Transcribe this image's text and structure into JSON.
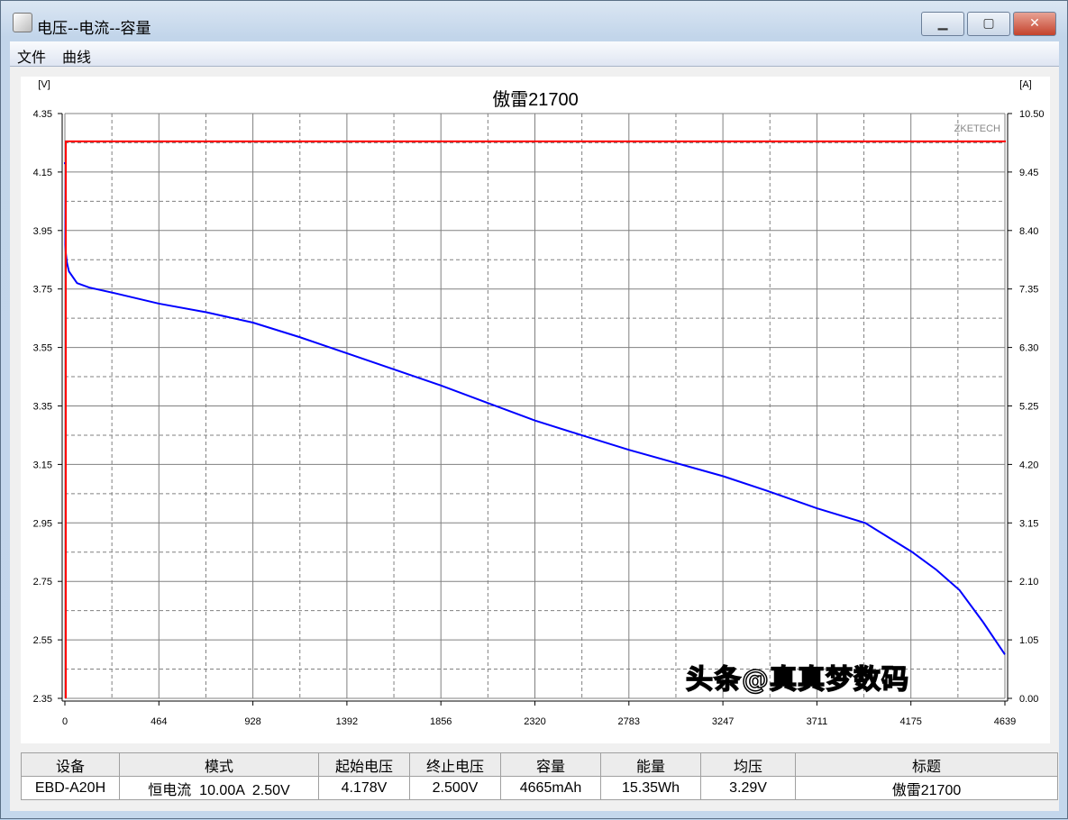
{
  "window": {
    "title": "电压--电流--容量",
    "icon": "battery-tester-icon",
    "buttons": [
      "minimize",
      "maximize",
      "close"
    ]
  },
  "menu": [
    "文件",
    "曲线"
  ],
  "chart_data": {
    "type": "line",
    "title": "傲雷21700",
    "brand": "ZKETECH",
    "ylabel_left": "[V]",
    "ylabel_right": "[A]",
    "xlim": [
      0,
      4639
    ],
    "ylim_left": [
      2.35,
      4.35
    ],
    "ylim_right": [
      0,
      10.5
    ],
    "x_ticks": [
      "0",
      "464",
      "928",
      "1392",
      "1856",
      "2320",
      "2783",
      "3247",
      "3711",
      "4175",
      "4639"
    ],
    "y_left_ticks": [
      "2.35",
      "2.55",
      "2.75",
      "2.95",
      "3.15",
      "3.35",
      "3.55",
      "3.75",
      "3.95",
      "4.15",
      "4.35"
    ],
    "y_right_ticks": [
      "0.00",
      "1.05",
      "2.10",
      "3.15",
      "4.20",
      "5.25",
      "6.30",
      "7.35",
      "8.40",
      "9.45",
      "10.50"
    ],
    "grid": true,
    "series": [
      {
        "axis": "left",
        "color": "#0000ff",
        "x": [
          0,
          2,
          5,
          10,
          20,
          40,
          60,
          120,
          250,
          464,
          700,
          928,
          1160,
          1392,
          1624,
          1856,
          2088,
          2320,
          2550,
          2783,
          3015,
          3247,
          3464,
          3711,
          3949,
          4182,
          4300,
          4415,
          4532,
          4639
        ],
        "y": [
          4.18,
          3.9,
          3.87,
          3.84,
          3.81,
          3.79,
          3.77,
          3.755,
          3.735,
          3.7,
          3.67,
          3.635,
          3.585,
          3.53,
          3.475,
          3.42,
          3.36,
          3.3,
          3.25,
          3.2,
          3.155,
          3.11,
          3.06,
          3.0,
          2.95,
          2.85,
          2.79,
          2.72,
          2.61,
          2.5
        ]
      },
      {
        "axis": "right",
        "color": "#ff0000",
        "x": [
          0,
          0,
          4639
        ],
        "y": [
          0,
          10.0,
          10.0
        ]
      }
    ]
  },
  "table": {
    "headers": [
      "设备",
      "模式",
      "起始电压",
      "终止电压",
      "容量",
      "能量",
      "均压",
      "标题"
    ],
    "values": [
      "EBD-A20H",
      "恒电流  10.00A  2.50V",
      "4.178V",
      "2.500V",
      "4665mAh",
      "15.35Wh",
      "3.29V",
      "傲雷21700"
    ]
  },
  "watermark": "头条@真真梦数码"
}
